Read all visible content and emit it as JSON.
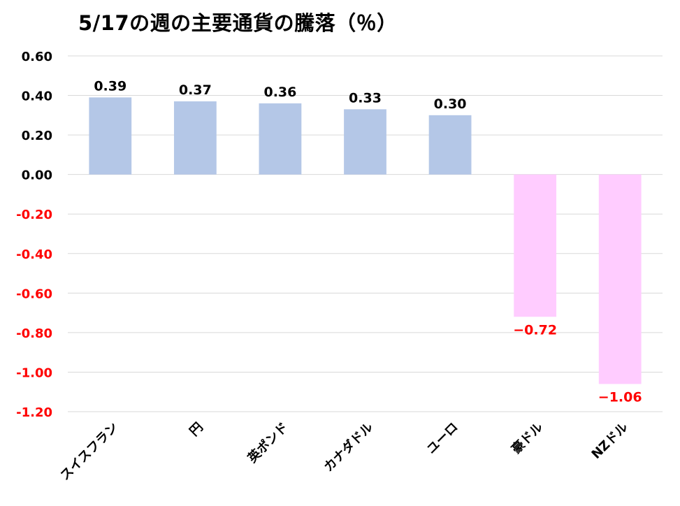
{
  "chart_data": {
    "type": "bar",
    "title": "5/17の週の主要通貨の騰落（％）",
    "xlabel": "",
    "ylabel": "",
    "categories": [
      "スイスフラン",
      "円",
      "英ポンド",
      "カナダドル",
      "ユーロ",
      "豪ドル",
      "NZドル"
    ],
    "values": [
      0.39,
      0.37,
      0.36,
      0.33,
      0.3,
      -0.72,
      -1.06
    ],
    "data_labels": [
      "0.39",
      "0.37",
      "0.36",
      "0.33",
      "0.30",
      "−0.72",
      "−1.06"
    ],
    "ylim": [
      -1.2,
      0.6
    ],
    "yticks": [
      0.6,
      0.4,
      0.2,
      0.0,
      -0.2,
      -0.4,
      -0.6,
      -0.8,
      -1.0,
      -1.2
    ],
    "ytick_labels": [
      "0.60",
      "0.40",
      "0.20",
      "0.00",
      "-0.20",
      "-0.40",
      "-0.60",
      "-0.80",
      "-1.00",
      "-1.20"
    ],
    "grid": true,
    "legend": "none",
    "colors": {
      "positive_bar": "#b4c7e7",
      "negative_bar": "#ffccff",
      "positive_text": "#000000",
      "negative_text": "#ff0000",
      "gridline": "#d9d9d9"
    }
  }
}
